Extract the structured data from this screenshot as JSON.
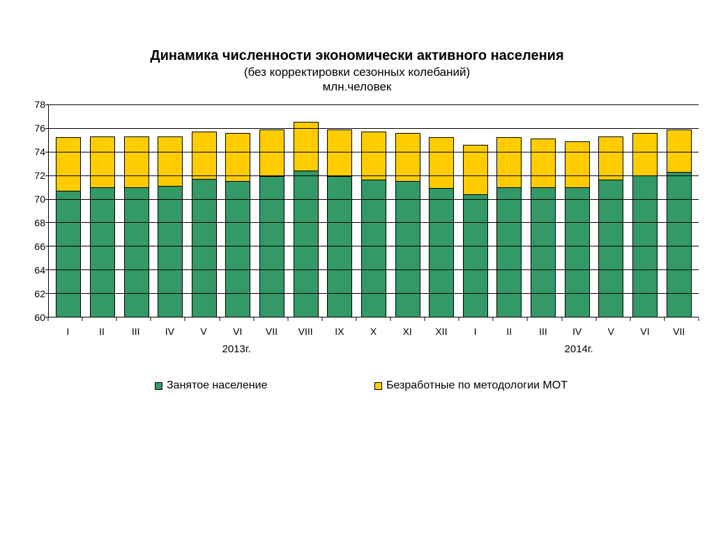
{
  "chart": {
    "type": "stacked-bar",
    "title_main": "Динамика численности экономически активного населения",
    "title_sub": "(без корректировки сезонных колебаний)",
    "title_unit": "млн.человек",
    "title_fontsize_main": 20,
    "title_fontsize_sub": 17,
    "background_color": "#ffffff",
    "text_color": "#000000",
    "axis_color": "#000000",
    "grid_color": "#000000",
    "grid": true,
    "y": {
      "min": 60,
      "max": 78,
      "step": 2,
      "ticks": [
        60,
        62,
        64,
        66,
        68,
        70,
        72,
        74,
        76,
        78
      ],
      "label_fontsize": 14
    },
    "x": {
      "label_fontsize": 14,
      "group_label_fontsize": 15,
      "categories": [
        "I",
        "II",
        "III",
        "IV",
        "V",
        "VI",
        "VII",
        "VIII",
        "IX",
        "X",
        "XI",
        "XII",
        "I",
        "II",
        "III",
        "IV",
        "V",
        "VI",
        "VII"
      ],
      "groups": [
        {
          "label": "2013г.",
          "center_index": 5
        },
        {
          "label": "2014г.",
          "center_index": 15
        }
      ]
    },
    "bar": {
      "width_ratio": 0.74,
      "border_color": "#000000",
      "border_width": 1
    },
    "series": {
      "employed": {
        "label": "Занятое население",
        "color": "#339966",
        "order": 0
      },
      "unemployed": {
        "label": "Безработные по методологии МОТ",
        "color": "#ffcc00",
        "order": 1
      }
    },
    "data": {
      "employed": [
        70.7,
        71.0,
        71.0,
        71.1,
        71.7,
        71.5,
        71.9,
        72.4,
        71.9,
        71.6,
        71.5,
        70.9,
        70.4,
        71.0,
        71.0,
        71.0,
        71.6,
        72.0,
        72.3
      ],
      "unemployed": [
        4.5,
        4.3,
        4.3,
        4.2,
        4.0,
        4.1,
        4.0,
        4.1,
        4.0,
        4.1,
        4.1,
        4.3,
        4.2,
        4.2,
        4.1,
        3.9,
        3.7,
        3.6,
        3.6
      ]
    },
    "legend": {
      "swatch_size": 11,
      "swatch_border_color": "#000000",
      "fontsize": 16,
      "items": [
        "employed",
        "unemployed"
      ]
    }
  }
}
